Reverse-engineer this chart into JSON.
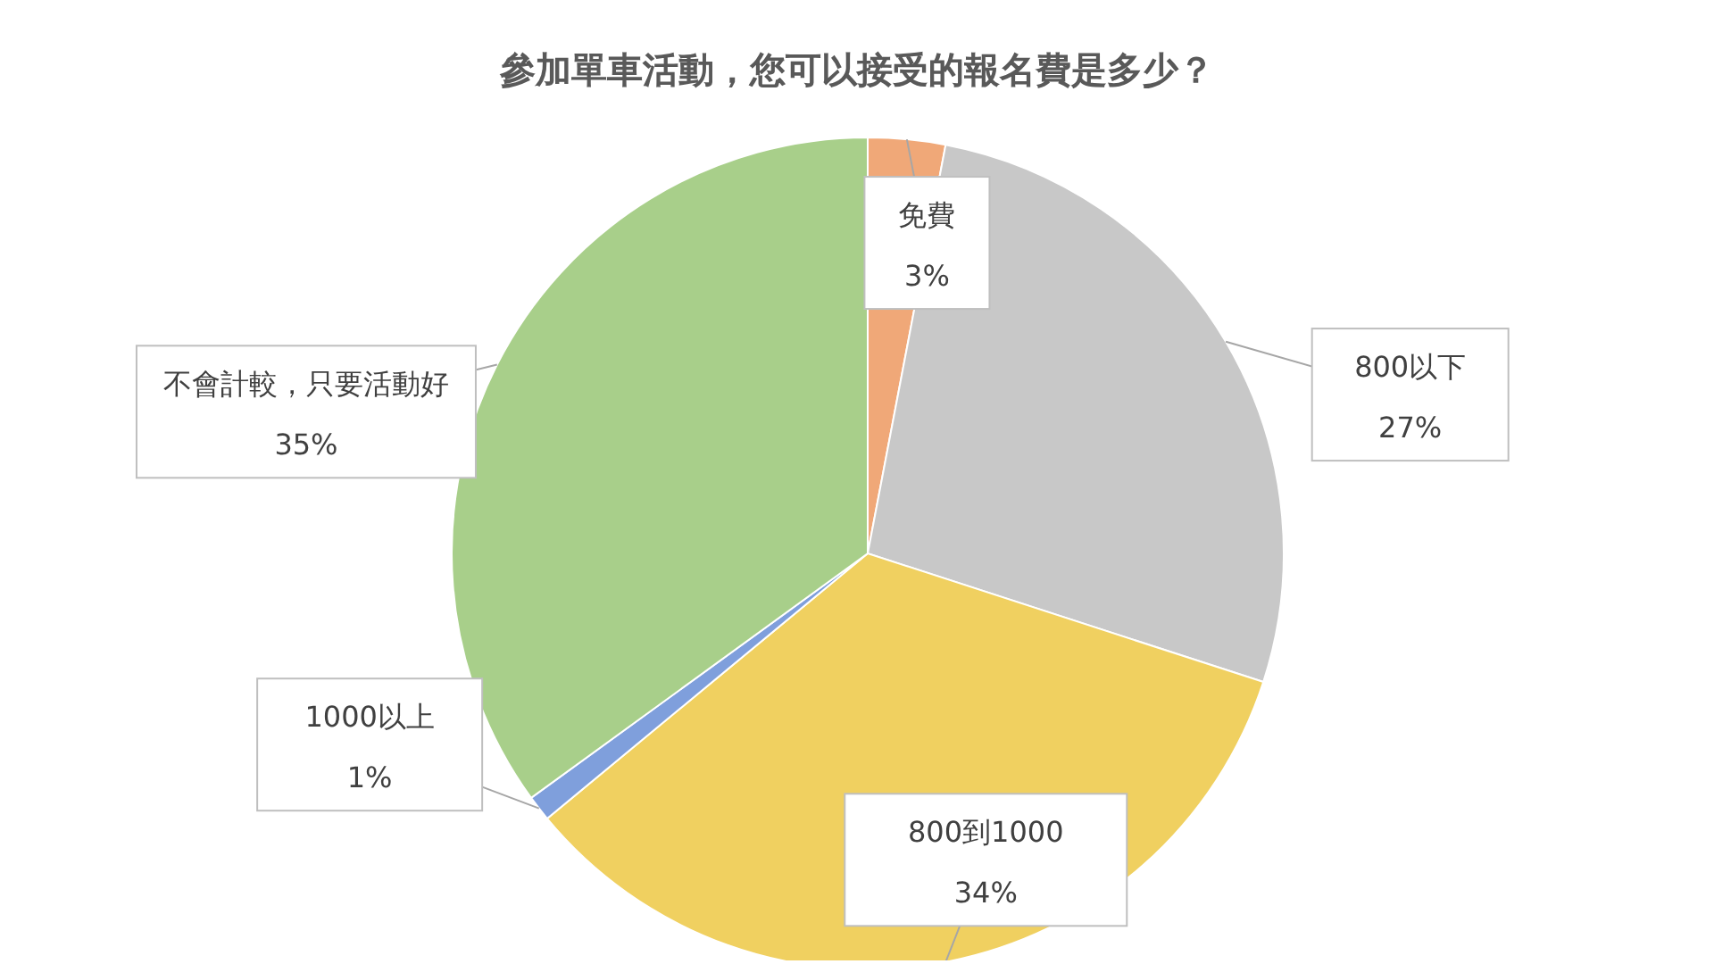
{
  "chart_data": {
    "type": "pie",
    "title": "參加單車活動，您可以接受的報名費是多少？",
    "categories": [
      "免費",
      "800以下",
      "800到1000",
      "1000以上",
      "不會計較，只要活動好"
    ],
    "values": [
      3,
      27,
      34,
      1,
      35
    ],
    "value_labels": [
      "3%",
      "27%",
      "34%",
      "1%",
      "35%"
    ],
    "colors": [
      "#f0a878",
      "#c8c8c8",
      "#f0d060",
      "#7f9fdc",
      "#a8cf8a"
    ]
  }
}
